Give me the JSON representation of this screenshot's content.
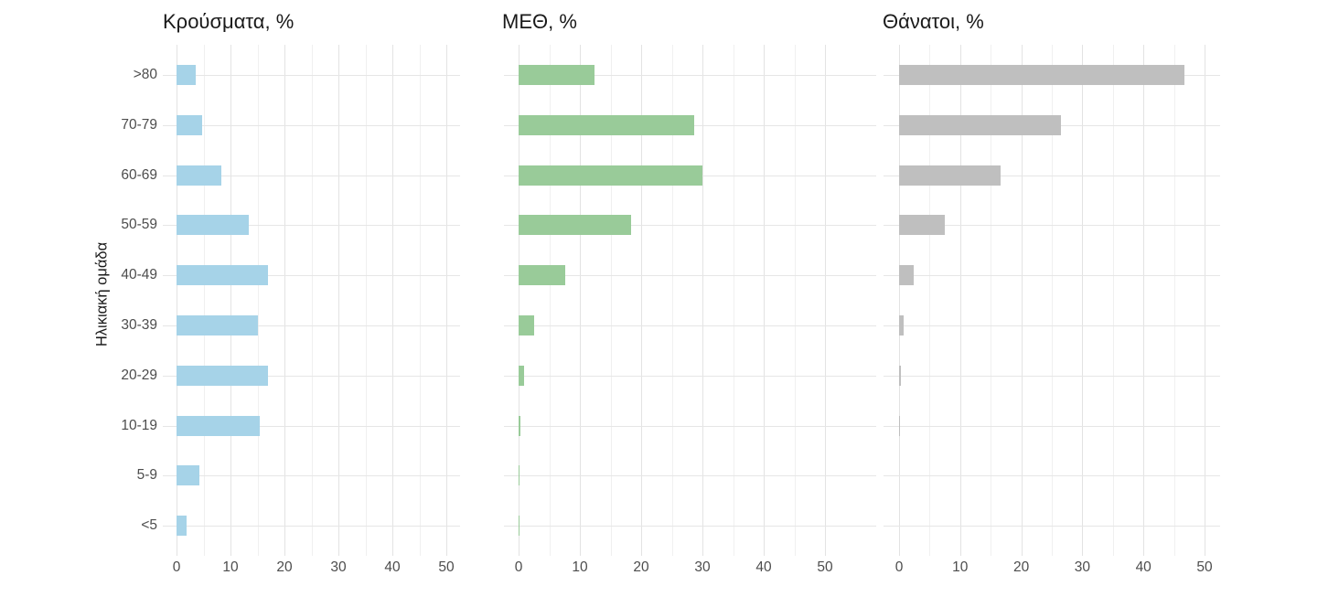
{
  "figure": {
    "y_axis_title": "Ηλικιακή ομάδα",
    "categories": [
      ">80",
      "70-79",
      "60-69",
      "50-59",
      "40-49",
      "30-39",
      "20-29",
      "10-19",
      "5-9",
      "<5"
    ],
    "x_tick_labels": [
      "0",
      "10",
      "20",
      "30",
      "40",
      "50"
    ],
    "background_color": "#ffffff",
    "gridline_major_color": "#e3e3e3",
    "gridline_minor_color": "#f0f0f0",
    "axis_text_color": "#4d4d4d",
    "title_color": "#1a1a1a"
  },
  "chart_data": [
    {
      "type": "bar",
      "orientation": "horizontal",
      "title": "Κρούσματα, %",
      "ylabel": "Ηλικιακή ομάδα",
      "xlabel": "",
      "categories": [
        ">80",
        "70-79",
        "60-69",
        "50-59",
        "40-49",
        "30-39",
        "20-29",
        "10-19",
        "5-9",
        "<5"
      ],
      "values": [
        3.6,
        4.8,
        8.3,
        13.4,
        16.9,
        15.0,
        16.9,
        15.4,
        4.3,
        1.9
      ],
      "bar_color": "#a6d3e8",
      "xlim": [
        0,
        50
      ],
      "xticks": [
        0,
        10,
        20,
        30,
        40,
        50
      ],
      "grid": true,
      "legend": false
    },
    {
      "type": "bar",
      "orientation": "horizontal",
      "title": "ΜΕΘ, %",
      "ylabel": "",
      "xlabel": "",
      "categories": [
        ">80",
        "70-79",
        "60-69",
        "50-59",
        "40-49",
        "30-39",
        "20-29",
        "10-19",
        "5-9",
        "<5"
      ],
      "values": [
        12.4,
        28.6,
        30.0,
        18.3,
        7.6,
        2.6,
        0.9,
        0.3,
        0.1,
        0.1
      ],
      "bar_color": "#99cb99",
      "xlim": [
        0,
        50
      ],
      "xticks": [
        0,
        10,
        20,
        30,
        40,
        50
      ],
      "grid": true,
      "legend": false
    },
    {
      "type": "bar",
      "orientation": "horizontal",
      "title": "Θάνατοι, %",
      "ylabel": "",
      "xlabel": "",
      "categories": [
        ">80",
        "70-79",
        "60-69",
        "50-59",
        "40-49",
        "30-39",
        "20-29",
        "10-19",
        "5-9",
        "<5"
      ],
      "values": [
        46.7,
        26.5,
        16.6,
        7.5,
        2.4,
        0.7,
        0.3,
        0.1,
        0,
        0
      ],
      "bar_color": "#bfbfbf",
      "xlim": [
        0,
        50
      ],
      "xticks": [
        0,
        10,
        20,
        30,
        40,
        50
      ],
      "grid": true,
      "legend": false
    }
  ]
}
